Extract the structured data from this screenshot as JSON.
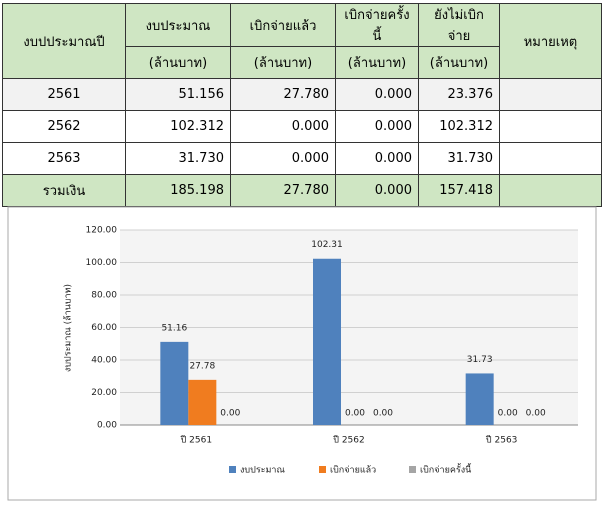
{
  "table": {
    "columns": [
      {
        "title": "งบปประมาณปี"
      },
      {
        "title": "งบประมาณ",
        "unit": "(ล้านบาท)"
      },
      {
        "title": "เบิกจ่ายแล้ว",
        "unit": "(ล้านบาท)"
      },
      {
        "title": "เบิกจ่ายครั้งนี้",
        "unit": "(ล้านบาท)"
      },
      {
        "title": "ยังไม่เบิกจ่าย",
        "unit": "(ล้านบาท)"
      },
      {
        "title": "หมายเหตุ"
      }
    ],
    "rows": [
      [
        "2561",
        "51.156",
        "27.780",
        "0.000",
        "23.376"
      ],
      [
        "2562",
        "102.312",
        "0.000",
        "0.000",
        "102.312"
      ],
      [
        "2563",
        "31.730",
        "0.000",
        "0.000",
        "31.730"
      ]
    ],
    "total": [
      "รวมเงิน",
      "185.198",
      "27.780",
      "0.000",
      "157.418"
    ]
  },
  "chart_data": {
    "type": "bar",
    "y_label": "งบประมาณ (ล้านบาท)",
    "categories": [
      "ปี 2561",
      "ปี 2562",
      "ปี 2563"
    ],
    "series": [
      {
        "name": "งบประมาณ",
        "color": "#4f81bd",
        "values": [
          51.16,
          102.31,
          31.73
        ],
        "value_labels": [
          "51.16",
          "102.31",
          "31.73"
        ]
      },
      {
        "name": "เบิกจ่ายแล้ว",
        "color": "#f07c1f",
        "values": [
          27.78,
          0,
          0
        ],
        "value_labels": [
          "27.78",
          "0.00",
          "0.00"
        ]
      },
      {
        "name": "เบิกจ่ายครั้งนี้",
        "color": "#a5a5a5",
        "values": [
          0,
          0,
          0
        ],
        "value_labels": [
          "0.00",
          "0.00",
          "0.00"
        ]
      }
    ],
    "ylim": [
      0,
      120
    ],
    "yticks": [
      {
        "value": 0,
        "label": "0.00"
      },
      {
        "value": 20,
        "label": "20.00"
      },
      {
        "value": 40,
        "label": "40.00"
      },
      {
        "value": 60,
        "label": "60.00"
      },
      {
        "value": 80,
        "label": "80.00"
      },
      {
        "value": 100,
        "label": "100.00"
      },
      {
        "value": 120,
        "label": "120.00"
      }
    ],
    "grid": true,
    "legend": "bottom"
  }
}
